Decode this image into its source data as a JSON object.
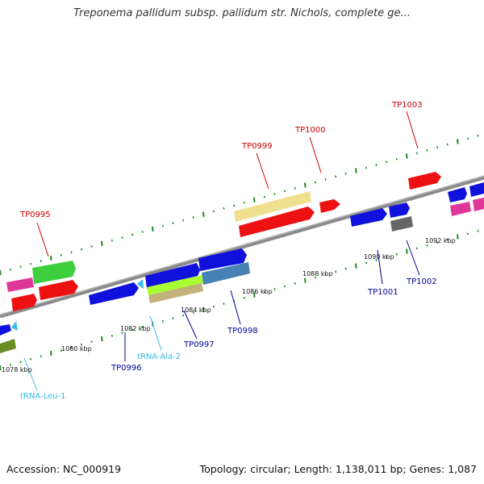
{
  "title": "Treponema pallidum subsp. pallidum str. Nichols, complete ge...",
  "footer": {
    "accession": "Accession: NC_000919",
    "summary": "Topology: circular; Length: 1,138,011 bp; Genes: 1,087"
  },
  "colors": {
    "backbone": "#8a8a8a",
    "tick": "#1f8a1f",
    "gene_label_red": "#cc0000",
    "gene_label_blue": "#00009a",
    "rna_label": "#33bbee"
  },
  "scale_labels": [
    "1078 kbp",
    "1080 kbp",
    "1082 kbp",
    "1084 kbp",
    "1086 kbp",
    "1088 kbp",
    "1090 kbp",
    "1092 kbp"
  ],
  "gene_labels": {
    "TP0995": "TP0995",
    "TP0999": "TP0999",
    "TP1000": "TP1000",
    "TP1003": "TP1003",
    "TP0996": "TP0996",
    "TP0997": "TP0997",
    "TP0998": "TP0998",
    "TP1001": "TP1001",
    "TP1002": "TP1002",
    "tRNA_Leu_1": "tRNA-Leu-1",
    "tRNA_Ala_2": "tRNA-Ala-2"
  }
}
